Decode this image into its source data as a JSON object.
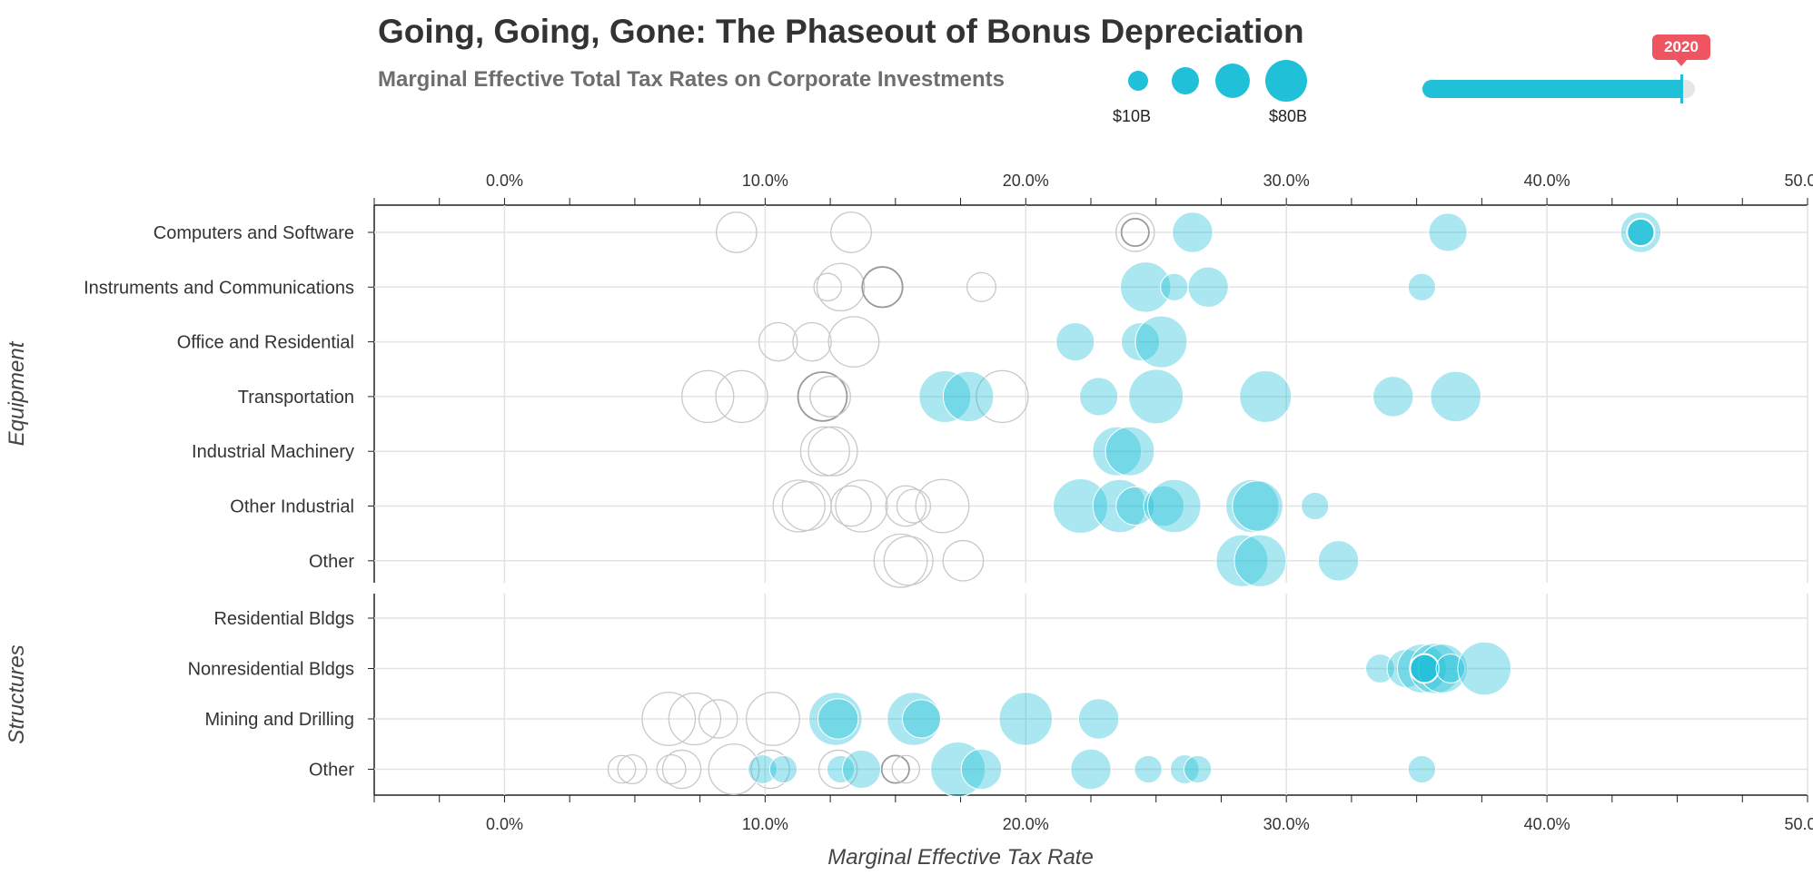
{
  "header": {
    "title": "Going, Going, Gone: The Phaseout of Bonus Depreciation",
    "subtitle": "Marginal Effective Total Tax Rates on Corporate Investments"
  },
  "size_legend": {
    "min_label": "$10B",
    "max_label": "$80B"
  },
  "year_slider": {
    "selected_year": "2020",
    "progress": 0.95
  },
  "colors": {
    "accent": "#20c0d8",
    "ghost": "#c8c8c8",
    "tooltip": "#ef5560"
  },
  "chart_data": {
    "type": "scatter",
    "xlabel": "Marginal Effective Tax Rate",
    "xlim": [
      -5,
      50
    ],
    "x_ticks": [
      0,
      10,
      20,
      30,
      40,
      50
    ],
    "x_tick_labels": [
      "0.0%",
      "10.0%",
      "20.0%",
      "30.0%",
      "40.0%",
      "50.0%"
    ],
    "grid": true,
    "groups": [
      {
        "name": "Equipment",
        "categories": [
          "Computers and Software",
          "Instruments and Communications",
          "Office and Residential",
          "Transportation",
          "Industrial Machinery",
          "Other Industrial",
          "Other"
        ],
        "points": [
          {
            "cat": 0,
            "x": 36.2,
            "size": 30
          },
          {
            "cat": 0,
            "x": 26.4,
            "size": 35
          },
          {
            "cat": 0,
            "x": 43.6,
            "size": 35
          },
          {
            "cat": 0,
            "x": 43.6,
            "size": 10,
            "emph": true
          },
          {
            "cat": 0,
            "x": 8.9,
            "size": 35,
            "ghost": true
          },
          {
            "cat": 0,
            "x": 13.3,
            "size": 35,
            "ghost": true
          },
          {
            "cat": 0,
            "x": 24.2,
            "size": 30,
            "ghost": true
          },
          {
            "cat": 0,
            "x": 24.2,
            "size": 10,
            "ghost": true,
            "dark": true
          },
          {
            "cat": 1,
            "x": 24.6,
            "size": 65
          },
          {
            "cat": 1,
            "x": 25.7,
            "size": 10
          },
          {
            "cat": 1,
            "x": 27.0,
            "size": 35
          },
          {
            "cat": 1,
            "x": 35.2,
            "size": 10
          },
          {
            "cat": 1,
            "x": 12.9,
            "size": 55,
            "ghost": true
          },
          {
            "cat": 1,
            "x": 12.4,
            "size": 10,
            "ghost": true
          },
          {
            "cat": 1,
            "x": 14.5,
            "size": 35,
            "ghost": true,
            "dark": true
          },
          {
            "cat": 1,
            "x": 18.3,
            "size": 12,
            "ghost": true
          },
          {
            "cat": 2,
            "x": 21.9,
            "size": 30
          },
          {
            "cat": 2,
            "x": 24.4,
            "size": 30
          },
          {
            "cat": 2,
            "x": 25.2,
            "size": 70
          },
          {
            "cat": 2,
            "x": 10.5,
            "size": 30,
            "ghost": true
          },
          {
            "cat": 2,
            "x": 11.8,
            "size": 30,
            "ghost": true
          },
          {
            "cat": 2,
            "x": 13.4,
            "size": 65,
            "ghost": true
          },
          {
            "cat": 3,
            "x": 16.9,
            "size": 70
          },
          {
            "cat": 3,
            "x": 17.8,
            "size": 65
          },
          {
            "cat": 3,
            "x": 22.8,
            "size": 30
          },
          {
            "cat": 3,
            "x": 25.0,
            "size": 80
          },
          {
            "cat": 3,
            "x": 29.2,
            "size": 70
          },
          {
            "cat": 3,
            "x": 34.1,
            "size": 35
          },
          {
            "cat": 3,
            "x": 36.5,
            "size": 65
          },
          {
            "cat": 3,
            "x": 7.8,
            "size": 70,
            "ghost": true
          },
          {
            "cat": 3,
            "x": 9.1,
            "size": 70,
            "ghost": true
          },
          {
            "cat": 3,
            "x": 12.2,
            "size": 60,
            "ghost": true,
            "dark": true
          },
          {
            "cat": 3,
            "x": 12.5,
            "size": 35,
            "ghost": true
          },
          {
            "cat": 3,
            "x": 19.1,
            "size": 70,
            "ghost": true
          },
          {
            "cat": 4,
            "x": 23.5,
            "size": 60
          },
          {
            "cat": 4,
            "x": 24.0,
            "size": 60
          },
          {
            "cat": 4,
            "x": 12.3,
            "size": 60,
            "ghost": true
          },
          {
            "cat": 4,
            "x": 12.6,
            "size": 60,
            "ghost": true
          },
          {
            "cat": 5,
            "x": 22.1,
            "size": 80
          },
          {
            "cat": 5,
            "x": 23.6,
            "size": 75
          },
          {
            "cat": 5,
            "x": 24.2,
            "size": 30
          },
          {
            "cat": 5,
            "x": 25.3,
            "size": 35
          },
          {
            "cat": 5,
            "x": 25.7,
            "size": 75
          },
          {
            "cat": 5,
            "x": 28.7,
            "size": 75
          },
          {
            "cat": 5,
            "x": 28.9,
            "size": 65
          },
          {
            "cat": 5,
            "x": 31.1,
            "size": 10
          },
          {
            "cat": 5,
            "x": 11.3,
            "size": 70,
            "ghost": true
          },
          {
            "cat": 5,
            "x": 11.6,
            "size": 60,
            "ghost": true
          },
          {
            "cat": 5,
            "x": 13.3,
            "size": 35,
            "ghost": true
          },
          {
            "cat": 5,
            "x": 13.7,
            "size": 70,
            "ghost": true
          },
          {
            "cat": 5,
            "x": 15.4,
            "size": 35,
            "ghost": true
          },
          {
            "cat": 5,
            "x": 15.7,
            "size": 20,
            "ghost": true
          },
          {
            "cat": 5,
            "x": 16.8,
            "size": 75,
            "ghost": true
          },
          {
            "cat": 6,
            "x": 28.3,
            "size": 70
          },
          {
            "cat": 6,
            "x": 29.0,
            "size": 70
          },
          {
            "cat": 6,
            "x": 32.0,
            "size": 35
          },
          {
            "cat": 6,
            "x": 15.2,
            "size": 75,
            "ghost": true
          },
          {
            "cat": 6,
            "x": 15.5,
            "size": 60,
            "ghost": true
          },
          {
            "cat": 6,
            "x": 17.6,
            "size": 35,
            "ghost": true
          }
        ]
      },
      {
        "name": "Structures",
        "categories": [
          "Residential Bldgs",
          "Nonresidential Bldgs",
          "Mining and Drilling",
          "Other"
        ],
        "points": [
          {
            "cat": 1,
            "x": 33.6,
            "size": 12
          },
          {
            "cat": 1,
            "x": 34.6,
            "size": 30
          },
          {
            "cat": 1,
            "x": 35.2,
            "size": 60
          },
          {
            "cat": 1,
            "x": 35.7,
            "size": 65
          },
          {
            "cat": 1,
            "x": 36.0,
            "size": 60
          },
          {
            "cat": 1,
            "x": 35.3,
            "size": 12,
            "emph": true
          },
          {
            "cat": 1,
            "x": 36.3,
            "size": 12
          },
          {
            "cat": 1,
            "x": 37.6,
            "size": 75
          },
          {
            "cat": 2,
            "x": 12.7,
            "size": 75
          },
          {
            "cat": 2,
            "x": 12.8,
            "size": 35
          },
          {
            "cat": 2,
            "x": 15.7,
            "size": 75
          },
          {
            "cat": 2,
            "x": 16.0,
            "size": 30
          },
          {
            "cat": 2,
            "x": 20.0,
            "size": 75
          },
          {
            "cat": 2,
            "x": 22.8,
            "size": 35
          },
          {
            "cat": 2,
            "x": 6.3,
            "size": 75,
            "ghost": true
          },
          {
            "cat": 2,
            "x": 7.3,
            "size": 70,
            "ghost": true
          },
          {
            "cat": 2,
            "x": 8.2,
            "size": 30,
            "ghost": true
          },
          {
            "cat": 2,
            "x": 10.3,
            "size": 75,
            "ghost": true
          },
          {
            "cat": 3,
            "x": 9.9,
            "size": 12
          },
          {
            "cat": 3,
            "x": 10.7,
            "size": 10
          },
          {
            "cat": 3,
            "x": 12.9,
            "size": 10
          },
          {
            "cat": 3,
            "x": 13.7,
            "size": 30
          },
          {
            "cat": 3,
            "x": 17.4,
            "size": 80
          },
          {
            "cat": 3,
            "x": 18.3,
            "size": 35
          },
          {
            "cat": 3,
            "x": 22.5,
            "size": 35
          },
          {
            "cat": 3,
            "x": 24.7,
            "size": 10
          },
          {
            "cat": 3,
            "x": 26.1,
            "size": 12
          },
          {
            "cat": 3,
            "x": 26.6,
            "size": 10
          },
          {
            "cat": 3,
            "x": 35.2,
            "size": 10
          },
          {
            "cat": 3,
            "x": 4.5,
            "size": 10,
            "ghost": true
          },
          {
            "cat": 3,
            "x": 4.9,
            "size": 12,
            "ghost": true
          },
          {
            "cat": 3,
            "x": 6.4,
            "size": 12,
            "ghost": true
          },
          {
            "cat": 3,
            "x": 6.8,
            "size": 30,
            "ghost": true
          },
          {
            "cat": 3,
            "x": 8.8,
            "size": 65,
            "ghost": true
          },
          {
            "cat": 3,
            "x": 10.2,
            "size": 30,
            "ghost": true
          },
          {
            "cat": 3,
            "x": 12.8,
            "size": 30,
            "ghost": true
          },
          {
            "cat": 3,
            "x": 15.0,
            "size": 10,
            "ghost": true,
            "dark": true
          },
          {
            "cat": 3,
            "x": 15.4,
            "size": 10,
            "ghost": true
          }
        ]
      }
    ]
  }
}
